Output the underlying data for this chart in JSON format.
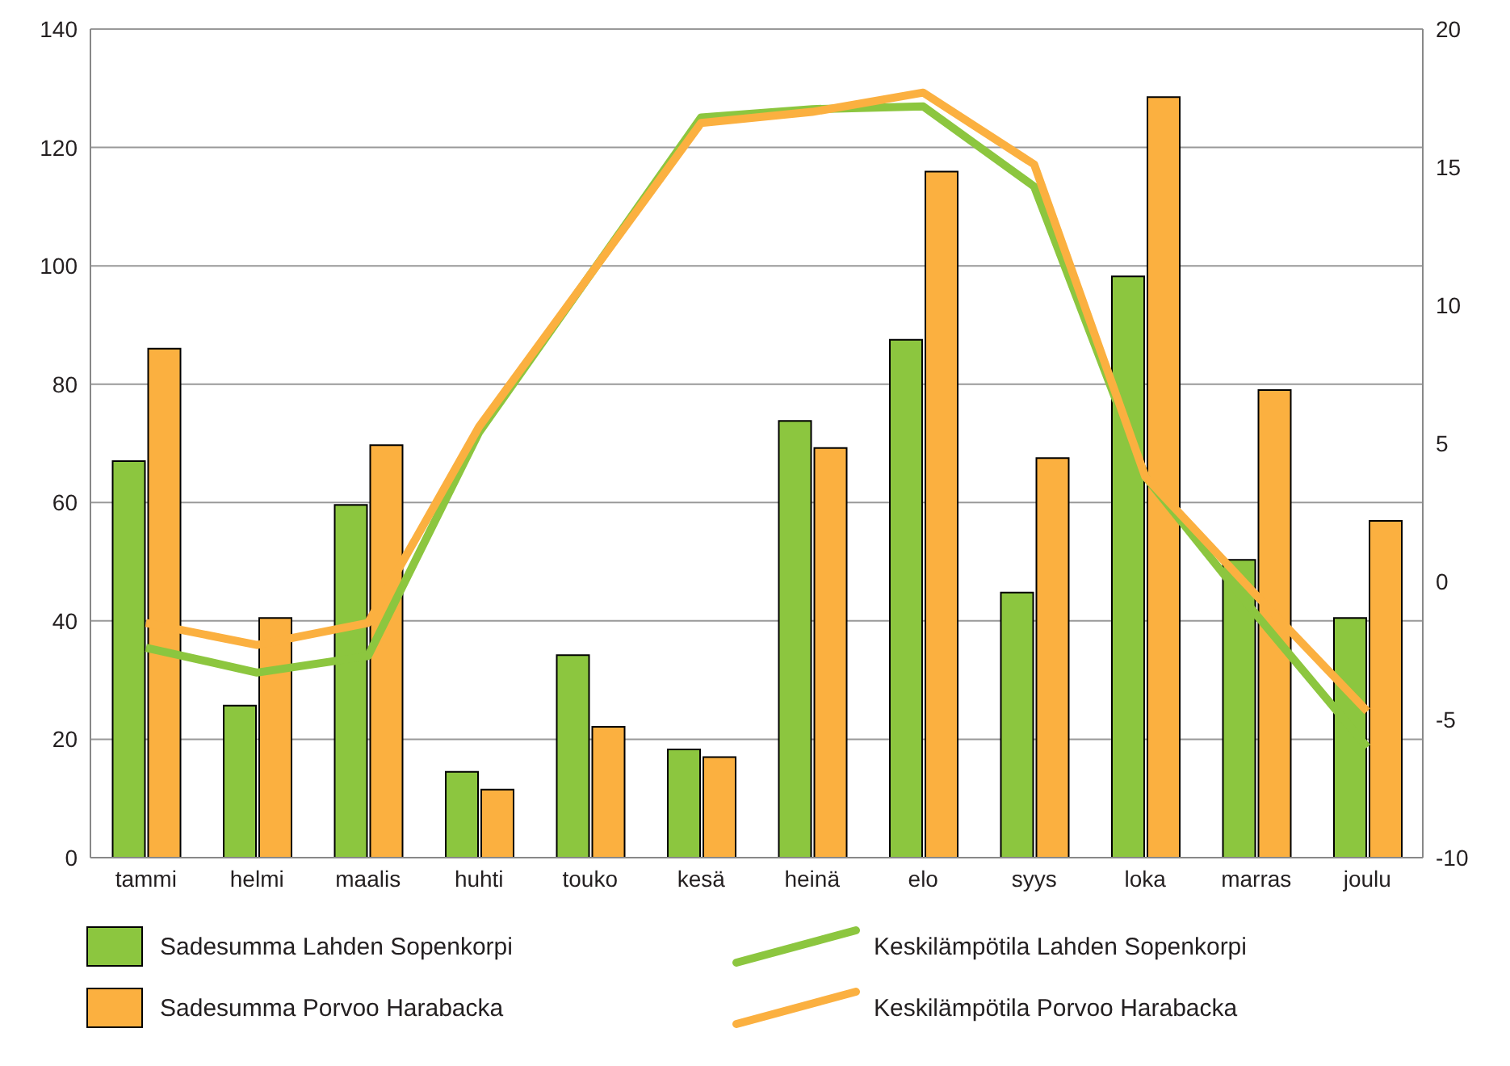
{
  "chart_data": {
    "type": "bar",
    "categories": [
      "tammi",
      "helmi",
      "maalis",
      "huhti",
      "touko",
      "kesä",
      "heinä",
      "elo",
      "syys",
      "loka",
      "marras",
      "joulu"
    ],
    "series": [
      {
        "name": "Sadesumma Lahden Sopenkorpi",
        "color": "#8cc63f",
        "values": [
          67,
          25.7,
          59.6,
          14.5,
          34.2,
          18.3,
          73.8,
          87.5,
          44.8,
          98.2,
          50.3,
          40.5
        ]
      },
      {
        "name": "Sadesumma Porvoo Harabacka",
        "color": "#fbb040",
        "values": [
          86,
          40.5,
          69.7,
          11.5,
          22.1,
          17,
          69.2,
          115.9,
          67.5,
          128.5,
          79,
          56.9
        ]
      },
      {
        "name": "Keskilämpötila Lahden Sopenkorpi",
        "type": "line",
        "axis": "y2",
        "color": "#8cc63f",
        "values": [
          -2.4,
          -3.3,
          -2.7,
          5.4,
          11.1,
          16.8,
          17.1,
          17.2,
          14.3,
          3.8,
          -1.2,
          -6
        ]
      },
      {
        "name": "Keskilämpötila Porvoo Harabacka",
        "type": "line",
        "axis": "y2",
        "color": "#fbb040",
        "values": [
          -1.5,
          -2.3,
          -1.5,
          5.6,
          11.1,
          16.6,
          17,
          17.7,
          15.1,
          3.8,
          -0.5,
          -4.7
        ]
      }
    ],
    "ylim": [
      0,
      140
    ],
    "yticks": [
      0,
      20,
      40,
      60,
      80,
      100,
      120,
      140
    ],
    "y2lim": [
      -10,
      20
    ],
    "y2ticks": [
      -10,
      -5,
      0,
      5,
      10,
      15,
      20
    ],
    "grid": "y",
    "legend": "bottom",
    "marker": "none"
  }
}
